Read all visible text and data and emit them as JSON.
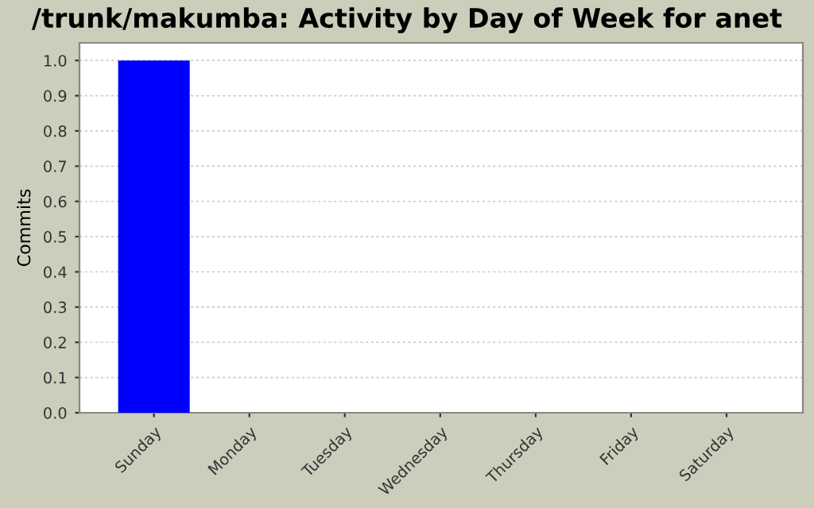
{
  "chart_data": {
    "type": "bar",
    "title": "/trunk/makumba: Activity by Day of Week for anet",
    "ylabel": "Commits",
    "categories": [
      "Sunday",
      "Monday",
      "Tuesday",
      "Wednesday",
      "Thursday",
      "Friday",
      "Saturday"
    ],
    "values": [
      1.0,
      0,
      0,
      0,
      0,
      0,
      0
    ],
    "color": "#0000ff",
    "ylim": [
      0,
      1.05
    ],
    "yticks": [
      {
        "value": 0,
        "label": "0.0"
      },
      0.1,
      0.2,
      0.3,
      0.4,
      0.5,
      0.6,
      0.7,
      0.8,
      0.9,
      {
        "value": 1,
        "label": "1.0"
      }
    ],
    "grid": "y",
    "legend": false
  }
}
